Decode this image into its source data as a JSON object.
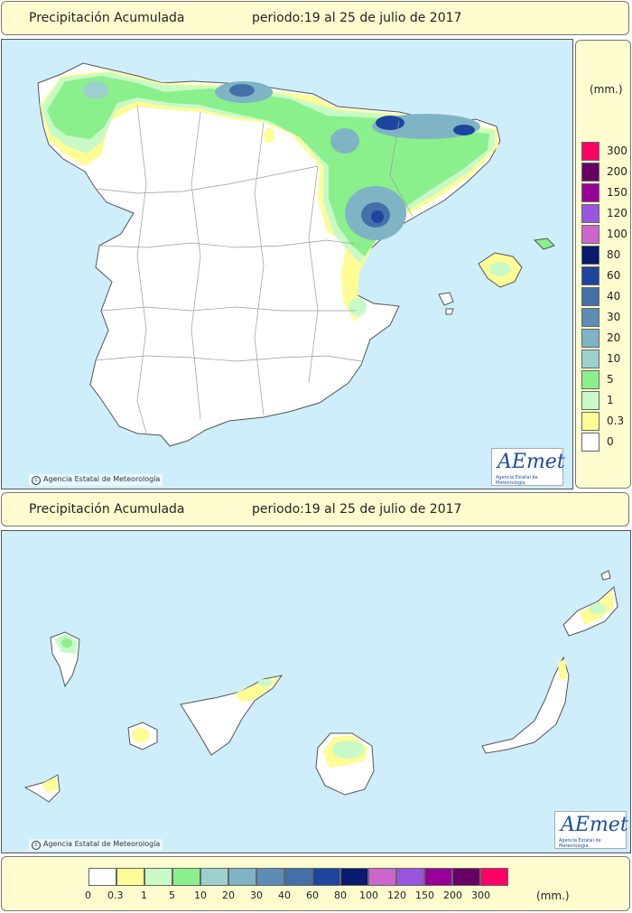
{
  "top": {
    "header": {
      "title": "Precipitación Acumulada",
      "period": "periodo:19 al 25 de julio de 2017"
    },
    "credit": "Agencia Estatal de Meteorología",
    "logo": {
      "word": "AEmet",
      "sub": "Agencia Estatal de Meteorología"
    }
  },
  "bottom": {
    "header": {
      "title": "Precipitación Acumulada",
      "period": "periodo:19 al 25 de julio de 2017"
    },
    "credit": "Agencia Estatal de Meteorología",
    "logo": {
      "word": "AEmet",
      "sub": "Agencia Estatal de Meteorología"
    }
  },
  "legend": {
    "unit": "(mm.)",
    "classes": [
      {
        "label": "0",
        "color": "#ffffff"
      },
      {
        "label": "0.3",
        "color": "#fffc96"
      },
      {
        "label": "1",
        "color": "#c8fac8"
      },
      {
        "label": "5",
        "color": "#8af08c"
      },
      {
        "label": "10",
        "color": "#9bd0cd"
      },
      {
        "label": "20",
        "color": "#7fb4c4"
      },
      {
        "label": "30",
        "color": "#5d8db5"
      },
      {
        "label": "40",
        "color": "#4470a8"
      },
      {
        "label": "60",
        "color": "#1d45a0"
      },
      {
        "label": "80",
        "color": "#0a1a6e"
      },
      {
        "label": "100",
        "color": "#cc66cc"
      },
      {
        "label": "120",
        "color": "#9955dd"
      },
      {
        "label": "150",
        "color": "#990099"
      },
      {
        "label": "200",
        "color": "#660066"
      },
      {
        "label": "300",
        "color": "#ff0066"
      }
    ]
  },
  "colors": {
    "sea": "#cdeefa",
    "header_bg": "#fffdd0",
    "land_dry": "#ffffff"
  }
}
